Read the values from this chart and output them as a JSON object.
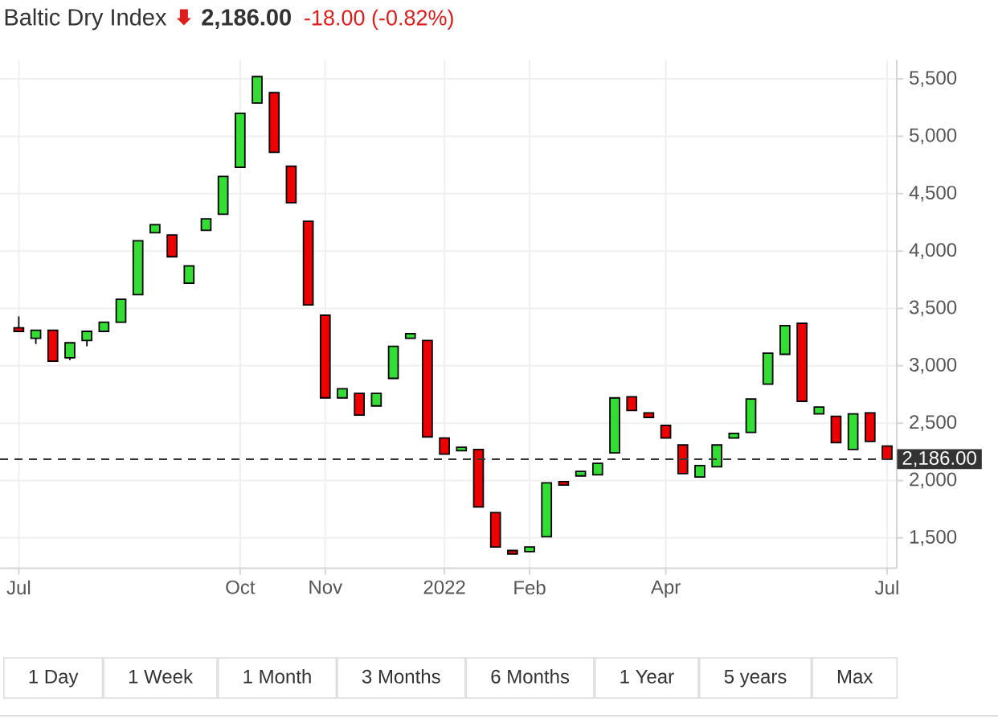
{
  "chart_data": {
    "type": "candlestick",
    "title": "Baltic Dry Index",
    "subtitle": "2,186.00",
    "annotations": [
      "-18.00 (-0.82%)",
      "1 Day",
      "1 Week",
      "1 Month",
      "3 Months",
      "6 Months",
      "1 Year",
      "5 years",
      "Max"
    ],
    "categories": [
      "Jul",
      null,
      null,
      null,
      null,
      null,
      null,
      null,
      null,
      null,
      null,
      null,
      null,
      "Oct",
      null,
      null,
      null,
      null,
      "Nov",
      null,
      null,
      null,
      null,
      null,
      null,
      "2022",
      null,
      null,
      null,
      null,
      "Feb",
      null,
      null,
      null,
      null,
      null,
      null,
      null,
      "Apr",
      null,
      null,
      null,
      null,
      null,
      null,
      null,
      null,
      null,
      null,
      null,
      null,
      "Jul"
    ],
    "ohlc": [
      [
        3330,
        3430,
        3300,
        3300
      ],
      [
        3240,
        3310,
        3190,
        3310
      ],
      [
        3310,
        3310,
        3040,
        3040
      ],
      [
        3070,
        3200,
        3050,
        3200
      ],
      [
        3220,
        3300,
        3170,
        3300
      ],
      [
        3300,
        3380,
        3300,
        3380
      ],
      [
        3380,
        3580,
        3380,
        3580
      ],
      [
        3620,
        4090,
        3620,
        4090
      ],
      [
        4160,
        4230,
        4160,
        4230
      ],
      [
        4140,
        4140,
        3950,
        3950
      ],
      [
        3720,
        3870,
        3720,
        3870
      ],
      [
        4180,
        4280,
        4180,
        4280
      ],
      [
        4320,
        4650,
        4320,
        4650
      ],
      [
        4730,
        5200,
        4730,
        5200
      ],
      [
        5290,
        5520,
        5290,
        5520
      ],
      [
        5380,
        5380,
        4860,
        4860
      ],
      [
        4740,
        4740,
        4420,
        4420
      ],
      [
        4260,
        4260,
        3530,
        3530
      ],
      [
        3440,
        3440,
        2720,
        2720
      ],
      [
        2720,
        2800,
        2720,
        2800
      ],
      [
        2760,
        2760,
        2570,
        2570
      ],
      [
        2650,
        2760,
        2650,
        2760
      ],
      [
        2890,
        3170,
        2890,
        3170
      ],
      [
        3240,
        3280,
        3240,
        3280
      ],
      [
        3220,
        3220,
        2380,
        2380
      ],
      [
        2370,
        2370,
        2230,
        2230
      ],
      [
        2260,
        2290,
        2260,
        2290
      ],
      [
        2270,
        2270,
        1770,
        1770
      ],
      [
        1720,
        1720,
        1420,
        1420
      ],
      [
        1390,
        1390,
        1360,
        1360
      ],
      [
        1380,
        1420,
        1380,
        1420
      ],
      [
        1510,
        1980,
        1510,
        1980
      ],
      [
        1990,
        1990,
        1960,
        1960
      ],
      [
        2040,
        2080,
        2040,
        2080
      ],
      [
        2050,
        2150,
        2050,
        2150
      ],
      [
        2240,
        2720,
        2240,
        2720
      ],
      [
        2730,
        2730,
        2610,
        2610
      ],
      [
        2590,
        2590,
        2550,
        2550
      ],
      [
        2480,
        2480,
        2370,
        2370
      ],
      [
        2310,
        2310,
        2060,
        2060
      ],
      [
        2030,
        2130,
        2030,
        2130
      ],
      [
        2120,
        2310,
        2120,
        2310
      ],
      [
        2370,
        2410,
        2370,
        2410
      ],
      [
        2420,
        2710,
        2420,
        2710
      ],
      [
        2840,
        3110,
        2840,
        3110
      ],
      [
        3100,
        3350,
        3100,
        3350
      ],
      [
        3370,
        3370,
        2690,
        2690
      ],
      [
        2580,
        2640,
        2580,
        2640
      ],
      [
        2560,
        2560,
        2330,
        2330
      ],
      [
        2270,
        2580,
        2270,
        2580
      ],
      [
        2590,
        2590,
        2340,
        2340
      ],
      [
        2300,
        2300,
        2186,
        2186
      ]
    ],
    "colors": [
      "#ee0000",
      "#33dd33",
      "#ee0000",
      "#33dd33",
      "#33dd33",
      "#33dd33",
      "#33dd33",
      "#33dd33",
      "#33dd33",
      "#ee0000",
      "#33dd33",
      "#33dd33",
      "#33dd33",
      "#33dd33",
      "#33dd33",
      "#ee0000",
      "#ee0000",
      "#ee0000",
      "#ee0000",
      "#33dd33",
      "#ee0000",
      "#33dd33",
      "#33dd33",
      "#33dd33",
      "#ee0000",
      "#ee0000",
      "#33dd33",
      "#ee0000",
      "#ee0000",
      "#ee0000",
      "#33dd33",
      "#33dd33",
      "#ee0000",
      "#33dd33",
      "#33dd33",
      "#33dd33",
      "#ee0000",
      "#ee0000",
      "#ee0000",
      "#ee0000",
      "#33dd33",
      "#33dd33",
      "#33dd33",
      "#33dd33",
      "#33dd33",
      "#33dd33",
      "#ee0000",
      "#33dd33",
      "#ee0000",
      "#33dd33",
      "#ee0000",
      "#ee0000"
    ],
    "ylim": [
      1235,
      5665
    ],
    "yticks": [
      {
        "value": 1500,
        "label": "1,500"
      },
      {
        "value": 2000,
        "label": "2,000"
      },
      {
        "value": 2500,
        "label": "2,500"
      },
      {
        "value": 3000,
        "label": "3,000"
      },
      {
        "value": 3500,
        "label": "3,500"
      },
      {
        "value": 4000,
        "label": "4,000"
      },
      {
        "value": 4500,
        "label": "4,500"
      },
      {
        "value": 5000,
        "label": "5,000"
      },
      {
        "value": 5500,
        "label": "5,500"
      }
    ],
    "grid": true,
    "ref_lines": [
      {
        "axis": "y",
        "value": 2186,
        "label": "2,186.00",
        "color": "#333333",
        "line_style": "dashed"
      }
    ]
  }
}
